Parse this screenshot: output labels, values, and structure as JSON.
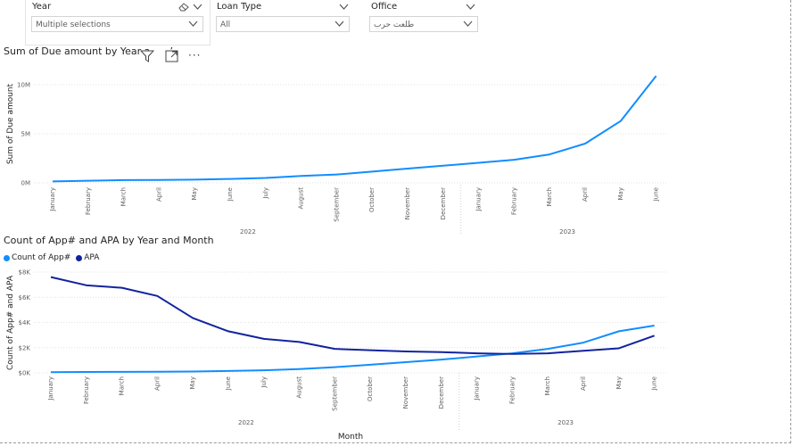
{
  "slicers": {
    "year": {
      "title": "Year",
      "value": "Multiple selections"
    },
    "loan_type": {
      "title": "Loan Type",
      "value": "All"
    },
    "office": {
      "title": "Office",
      "value": "طلعت حرب"
    }
  },
  "visual_header": {
    "filter_icon": "filter-icon",
    "focus_icon": "focus-mode-icon",
    "more_icon": "more-options-icon",
    "more_label": "···"
  },
  "chart1": {
    "title": "Sum of Due amount by Year a",
    "title_cut": "’"
  },
  "chart2": {
    "title": "Count of App# and APA by Year and Month",
    "xlabel": "Month"
  },
  "colors": {
    "series1": "#118DFF",
    "series2": "#12239E",
    "grid": "#e3e3e3"
  },
  "chart_data": [
    {
      "type": "line",
      "title": "Sum of Due amount by Year a",
      "ylabel": "Sum of Due amount",
      "xlabel": "",
      "categories": [
        "January",
        "February",
        "March",
        "April",
        "May",
        "June",
        "July",
        "August",
        "September",
        "October",
        "November",
        "December",
        "January",
        "February",
        "March",
        "April",
        "May",
        "June"
      ],
      "year_groups": [
        {
          "label": "2022",
          "count": 12
        },
        {
          "label": "2023",
          "count": 6
        }
      ],
      "yticks": [
        "0M",
        "5M",
        "10M"
      ],
      "ylim": [
        0,
        10
      ],
      "grid": true,
      "series": [
        {
          "values": [
            0.15,
            0.22,
            0.28,
            0.3,
            0.33,
            0.4,
            0.5,
            0.7,
            0.85,
            1.15,
            1.45,
            1.75,
            2.05,
            2.35,
            2.9,
            4.0,
            6.3,
            10.9
          ]
        }
      ]
    },
    {
      "type": "line",
      "title": "Count of App# and APA by Year and Month",
      "ylabel": "Count of App# and APA",
      "xlabel": "Month",
      "categories": [
        "January",
        "February",
        "March",
        "April",
        "May",
        "June",
        "July",
        "August",
        "September",
        "October",
        "November",
        "December",
        "January",
        "February",
        "March",
        "April",
        "May",
        "June"
      ],
      "year_groups": [
        {
          "label": "2022",
          "count": 12
        },
        {
          "label": "2023",
          "count": 6
        }
      ],
      "yticks": [
        "$0K",
        "$2K",
        "$4K",
        "$6K",
        "$8K"
      ],
      "ylim": [
        0,
        8
      ],
      "grid": true,
      "legend_position": "top-left",
      "series": [
        {
          "name": "Count of App#",
          "values": [
            0.05,
            0.07,
            0.08,
            0.09,
            0.11,
            0.15,
            0.2,
            0.3,
            0.45,
            0.65,
            0.85,
            1.05,
            1.3,
            1.55,
            1.9,
            2.4,
            3.3,
            3.75
          ]
        },
        {
          "name": "APA",
          "values": [
            7.6,
            6.95,
            6.75,
            6.1,
            4.35,
            3.3,
            2.7,
            2.45,
            1.9,
            1.8,
            1.7,
            1.65,
            1.55,
            1.5,
            1.55,
            1.75,
            1.95,
            2.95
          ]
        }
      ]
    }
  ]
}
